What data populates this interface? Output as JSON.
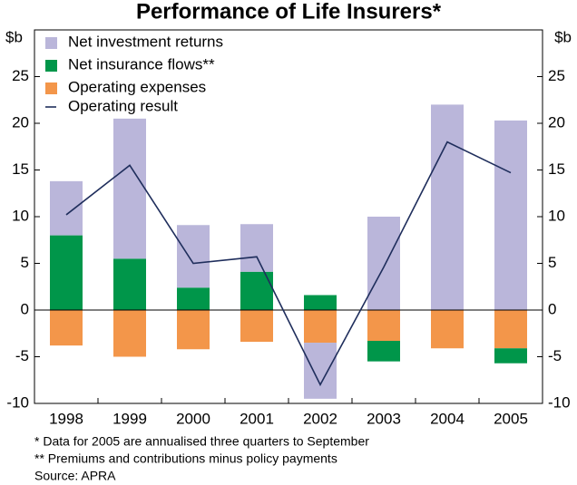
{
  "chart_data": {
    "type": "bar",
    "title": "Performance of Life Insurers*",
    "y_label": "$b",
    "categories": [
      "1998",
      "1999",
      "2000",
      "2001",
      "2002",
      "2003",
      "2004",
      "2005"
    ],
    "series": [
      {
        "name": "Net investment returns",
        "color": "#bab6da",
        "values": [
          5.8,
          15,
          6.7,
          5.1,
          -6.0,
          10.0,
          22.0,
          20.3
        ]
      },
      {
        "name": "Net insurance flows**",
        "color": "#00964a",
        "values": [
          8,
          5.5,
          2.4,
          4.1,
          1.6,
          -2.2,
          0,
          -1.6
        ]
      },
      {
        "name": "Operating expenses",
        "color": "#f3964a",
        "values": [
          -3.8,
          -5.0,
          -4.2,
          -3.4,
          -3.5,
          -3.3,
          -4.1,
          -4.1
        ]
      },
      {
        "name": "Operating result",
        "type": "line",
        "color": "#1f2e5c",
        "values": [
          10.2,
          15.5,
          5.0,
          5.7,
          -8.0,
          4.6,
          18.0,
          14.7
        ]
      }
    ],
    "ylim": [
      -10,
      30
    ],
    "yticks": [
      -10,
      -5,
      0,
      5,
      10,
      15,
      20,
      25
    ],
    "notes": [
      "*   Data for 2005 are annualised three quarters to September",
      "** Premiums and contributions minus policy payments",
      "Source: APRA"
    ]
  }
}
